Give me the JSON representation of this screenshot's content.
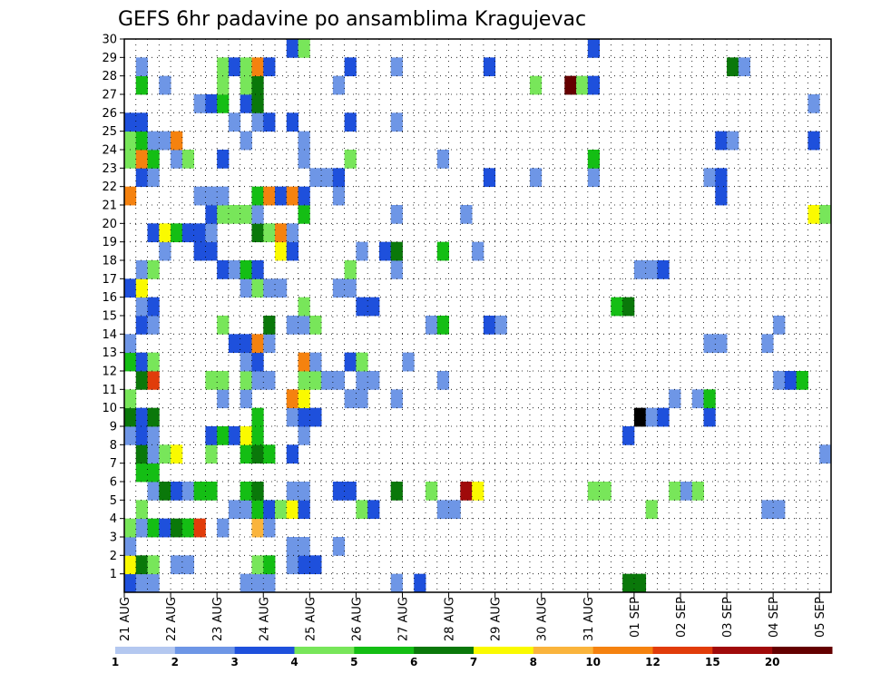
{
  "chart_data": {
    "type": "heatmap",
    "title": "GEFS 6hr padavine po ansamblima Kragujevac",
    "xlabel": "",
    "ylabel": "",
    "x_ticks": [
      "21 AUG",
      "22 AUG",
      "23 AUG",
      "24 AUG",
      "25 AUG",
      "26 AUG",
      "27 AUG",
      "28 AUG",
      "29 AUG",
      "30 AUG",
      "31 AUG",
      "01 SEP",
      "02 SEP",
      "03 SEP",
      "04 SEP",
      "05 SEP"
    ],
    "y_ticks": [
      "1",
      "2",
      "3",
      "4",
      "5",
      "6",
      "7",
      "8",
      "9",
      "10",
      "11",
      "12",
      "13",
      "14",
      "15",
      "16",
      "17",
      "18",
      "19",
      "20",
      "21",
      "22",
      "23",
      "24",
      "25",
      "26",
      "27",
      "28",
      "29",
      "30"
    ],
    "time_steps": 61,
    "members": 30,
    "grid": true,
    "legend": {
      "placement": "bottom",
      "levels": [
        "1",
        "2",
        "3",
        "4",
        "5",
        "6",
        "7",
        "8",
        "10",
        "12",
        "15",
        "20"
      ],
      "colors": [
        "#b4c8f0",
        "#6e96e6",
        "#1e50dc",
        "#78e65a",
        "#14be14",
        "#0a780a",
        "#fafa00",
        "#fab43c",
        "#f5820f",
        "#e13c0a",
        "#a00a0a",
        "#640000"
      ]
    },
    "cells": [
      [
        0,
        0,
        2
      ],
      [
        1,
        0,
        1
      ],
      [
        2,
        0,
        1
      ],
      [
        10,
        0,
        1
      ],
      [
        11,
        0,
        1
      ],
      [
        12,
        0,
        1
      ],
      [
        23,
        0,
        1
      ],
      [
        25,
        0,
        2
      ],
      [
        43,
        0,
        5
      ],
      [
        44,
        0,
        5
      ],
      [
        0,
        1,
        6
      ],
      [
        1,
        1,
        5
      ],
      [
        2,
        1,
        3
      ],
      [
        4,
        1,
        1
      ],
      [
        5,
        1,
        1
      ],
      [
        11,
        1,
        3
      ],
      [
        12,
        1,
        4
      ],
      [
        14,
        1,
        1
      ],
      [
        15,
        1,
        2
      ],
      [
        16,
        1,
        2
      ],
      [
        0,
        2,
        1
      ],
      [
        14,
        2,
        1
      ],
      [
        15,
        2,
        1
      ],
      [
        18,
        2,
        1
      ],
      [
        0,
        3,
        3
      ],
      [
        1,
        3,
        1
      ],
      [
        2,
        3,
        4
      ],
      [
        3,
        3,
        2
      ],
      [
        4,
        3,
        5
      ],
      [
        5,
        3,
        4
      ],
      [
        6,
        3,
        9
      ],
      [
        8,
        3,
        1
      ],
      [
        11,
        3,
        7
      ],
      [
        12,
        3,
        1
      ],
      [
        1,
        4,
        3
      ],
      [
        9,
        4,
        1
      ],
      [
        10,
        4,
        1
      ],
      [
        11,
        4,
        4
      ],
      [
        12,
        4,
        2
      ],
      [
        13,
        4,
        3
      ],
      [
        14,
        4,
        6
      ],
      [
        15,
        4,
        2
      ],
      [
        20,
        4,
        3
      ],
      [
        21,
        4,
        2
      ],
      [
        27,
        4,
        1
      ],
      [
        28,
        4,
        1
      ],
      [
        45,
        4,
        3
      ],
      [
        55,
        4,
        1
      ],
      [
        56,
        4,
        1
      ],
      [
        2,
        5,
        1
      ],
      [
        3,
        5,
        5
      ],
      [
        4,
        5,
        2
      ],
      [
        5,
        5,
        1
      ],
      [
        6,
        5,
        4
      ],
      [
        7,
        5,
        4
      ],
      [
        10,
        5,
        4
      ],
      [
        11,
        5,
        5
      ],
      [
        14,
        5,
        1
      ],
      [
        15,
        5,
        1
      ],
      [
        18,
        5,
        2
      ],
      [
        19,
        5,
        2
      ],
      [
        23,
        5,
        5
      ],
      [
        26,
        5,
        3
      ],
      [
        29,
        5,
        10
      ],
      [
        30,
        5,
        6
      ],
      [
        40,
        5,
        3
      ],
      [
        41,
        5,
        3
      ],
      [
        47,
        5,
        3
      ],
      [
        48,
        5,
        1
      ],
      [
        49,
        5,
        3
      ],
      [
        1,
        6,
        4
      ],
      [
        2,
        6,
        4
      ],
      [
        1,
        7,
        5
      ],
      [
        2,
        7,
        1
      ],
      [
        3,
        7,
        3
      ],
      [
        4,
        7,
        6
      ],
      [
        7,
        7,
        3
      ],
      [
        10,
        7,
        4
      ],
      [
        11,
        7,
        5
      ],
      [
        12,
        7,
        4
      ],
      [
        14,
        7,
        2
      ],
      [
        60,
        7,
        1
      ],
      [
        0,
        8,
        1
      ],
      [
        1,
        8,
        2
      ],
      [
        2,
        8,
        1
      ],
      [
        7,
        8,
        2
      ],
      [
        8,
        8,
        4
      ],
      [
        9,
        8,
        2
      ],
      [
        10,
        8,
        6
      ],
      [
        11,
        8,
        4
      ],
      [
        15,
        8,
        1
      ],
      [
        43,
        8,
        2
      ],
      [
        0,
        9,
        5
      ],
      [
        1,
        9,
        2
      ],
      [
        2,
        9,
        5
      ],
      [
        11,
        9,
        4
      ],
      [
        14,
        9,
        1
      ],
      [
        15,
        9,
        2
      ],
      [
        16,
        9,
        2
      ],
      [
        44,
        9,
        12
      ],
      [
        45,
        9,
        1
      ],
      [
        46,
        9,
        2
      ],
      [
        50,
        9,
        2
      ],
      [
        0,
        10,
        3
      ],
      [
        8,
        10,
        1
      ],
      [
        10,
        10,
        1
      ],
      [
        14,
        10,
        8
      ],
      [
        15,
        10,
        6
      ],
      [
        19,
        10,
        1
      ],
      [
        20,
        10,
        1
      ],
      [
        23,
        10,
        1
      ],
      [
        47,
        10,
        1
      ],
      [
        49,
        10,
        1
      ],
      [
        50,
        10,
        4
      ],
      [
        1,
        11,
        5
      ],
      [
        2,
        11,
        9
      ],
      [
        7,
        11,
        3
      ],
      [
        8,
        11,
        3
      ],
      [
        10,
        11,
        3
      ],
      [
        11,
        11,
        1
      ],
      [
        12,
        11,
        1
      ],
      [
        15,
        11,
        3
      ],
      [
        16,
        11,
        3
      ],
      [
        17,
        11,
        1
      ],
      [
        18,
        11,
        1
      ],
      [
        20,
        11,
        1
      ],
      [
        21,
        11,
        1
      ],
      [
        27,
        11,
        1
      ],
      [
        56,
        11,
        1
      ],
      [
        57,
        11,
        2
      ],
      [
        58,
        11,
        4
      ],
      [
        0,
        12,
        4
      ],
      [
        1,
        12,
        2
      ],
      [
        2,
        12,
        3
      ],
      [
        10,
        12,
        1
      ],
      [
        11,
        12,
        2
      ],
      [
        15,
        12,
        8
      ],
      [
        16,
        12,
        1
      ],
      [
        19,
        12,
        2
      ],
      [
        20,
        12,
        3
      ],
      [
        24,
        12,
        1
      ],
      [
        0,
        13,
        1
      ],
      [
        9,
        13,
        2
      ],
      [
        10,
        13,
        2
      ],
      [
        11,
        13,
        8
      ],
      [
        12,
        13,
        1
      ],
      [
        50,
        13,
        1
      ],
      [
        51,
        13,
        1
      ],
      [
        55,
        13,
        1
      ],
      [
        1,
        14,
        2
      ],
      [
        2,
        14,
        1
      ],
      [
        8,
        14,
        3
      ],
      [
        12,
        14,
        5
      ],
      [
        14,
        14,
        1
      ],
      [
        15,
        14,
        1
      ],
      [
        16,
        14,
        3
      ],
      [
        26,
        14,
        1
      ],
      [
        27,
        14,
        4
      ],
      [
        31,
        14,
        2
      ],
      [
        32,
        14,
        1
      ],
      [
        56,
        14,
        1
      ],
      [
        1,
        15,
        1
      ],
      [
        2,
        15,
        2
      ],
      [
        15,
        15,
        3
      ],
      [
        20,
        15,
        2
      ],
      [
        21,
        15,
        2
      ],
      [
        42,
        15,
        4
      ],
      [
        43,
        15,
        5
      ],
      [
        0,
        16,
        2
      ],
      [
        1,
        16,
        6
      ],
      [
        10,
        16,
        1
      ],
      [
        11,
        16,
        3
      ],
      [
        12,
        16,
        1
      ],
      [
        13,
        16,
        1
      ],
      [
        18,
        16,
        1
      ],
      [
        19,
        16,
        1
      ],
      [
        1,
        17,
        1
      ],
      [
        2,
        17,
        3
      ],
      [
        8,
        17,
        2
      ],
      [
        9,
        17,
        1
      ],
      [
        10,
        17,
        4
      ],
      [
        11,
        17,
        2
      ],
      [
        19,
        17,
        3
      ],
      [
        23,
        17,
        1
      ],
      [
        44,
        17,
        1
      ],
      [
        45,
        17,
        1
      ],
      [
        46,
        17,
        2
      ],
      [
        3,
        18,
        1
      ],
      [
        6,
        18,
        2
      ],
      [
        7,
        18,
        2
      ],
      [
        13,
        18,
        6
      ],
      [
        14,
        18,
        2
      ],
      [
        20,
        18,
        1
      ],
      [
        22,
        18,
        2
      ],
      [
        23,
        18,
        5
      ],
      [
        27,
        18,
        4
      ],
      [
        30,
        18,
        1
      ],
      [
        2,
        19,
        2
      ],
      [
        3,
        19,
        6
      ],
      [
        4,
        19,
        4
      ],
      [
        5,
        19,
        2
      ],
      [
        6,
        19,
        2
      ],
      [
        7,
        19,
        1
      ],
      [
        11,
        19,
        5
      ],
      [
        12,
        19,
        3
      ],
      [
        13,
        19,
        8
      ],
      [
        14,
        19,
        1
      ],
      [
        7,
        20,
        2
      ],
      [
        8,
        20,
        3
      ],
      [
        9,
        20,
        3
      ],
      [
        10,
        20,
        3
      ],
      [
        11,
        20,
        1
      ],
      [
        15,
        20,
        4
      ],
      [
        23,
        20,
        1
      ],
      [
        29,
        20,
        1
      ],
      [
        59,
        20,
        6
      ],
      [
        60,
        20,
        3
      ],
      [
        0,
        21,
        8
      ],
      [
        6,
        21,
        1
      ],
      [
        7,
        21,
        1
      ],
      [
        8,
        21,
        1
      ],
      [
        11,
        21,
        4
      ],
      [
        12,
        21,
        8
      ],
      [
        13,
        21,
        2
      ],
      [
        14,
        21,
        8
      ],
      [
        15,
        21,
        2
      ],
      [
        18,
        21,
        1
      ],
      [
        51,
        21,
        2
      ],
      [
        1,
        22,
        2
      ],
      [
        2,
        22,
        1
      ],
      [
        16,
        22,
        1
      ],
      [
        17,
        22,
        1
      ],
      [
        18,
        22,
        2
      ],
      [
        31,
        22,
        2
      ],
      [
        35,
        22,
        1
      ],
      [
        40,
        22,
        1
      ],
      [
        50,
        22,
        1
      ],
      [
        51,
        22,
        2
      ],
      [
        0,
        23,
        3
      ],
      [
        1,
        23,
        8
      ],
      [
        2,
        23,
        4
      ],
      [
        4,
        23,
        1
      ],
      [
        5,
        23,
        3
      ],
      [
        8,
        23,
        2
      ],
      [
        15,
        23,
        1
      ],
      [
        19,
        23,
        3
      ],
      [
        27,
        23,
        1
      ],
      [
        40,
        23,
        4
      ],
      [
        0,
        24,
        3
      ],
      [
        1,
        24,
        4
      ],
      [
        2,
        24,
        1
      ],
      [
        3,
        24,
        1
      ],
      [
        4,
        24,
        8
      ],
      [
        10,
        24,
        1
      ],
      [
        15,
        24,
        1
      ],
      [
        51,
        24,
        2
      ],
      [
        52,
        24,
        1
      ],
      [
        59,
        24,
        2
      ],
      [
        0,
        25,
        2
      ],
      [
        1,
        25,
        2
      ],
      [
        9,
        25,
        1
      ],
      [
        11,
        25,
        1
      ],
      [
        12,
        25,
        2
      ],
      [
        14,
        25,
        2
      ],
      [
        19,
        25,
        2
      ],
      [
        23,
        25,
        1
      ],
      [
        6,
        26,
        1
      ],
      [
        7,
        26,
        2
      ],
      [
        8,
        26,
        4
      ],
      [
        10,
        26,
        2
      ],
      [
        11,
        26,
        5
      ],
      [
        59,
        26,
        1
      ],
      [
        1,
        27,
        4
      ],
      [
        3,
        27,
        1
      ],
      [
        8,
        27,
        3
      ],
      [
        10,
        27,
        3
      ],
      [
        11,
        27,
        5
      ],
      [
        18,
        27,
        1
      ],
      [
        35,
        27,
        3
      ],
      [
        38,
        27,
        11
      ],
      [
        39,
        27,
        3
      ],
      [
        40,
        27,
        2
      ],
      [
        1,
        28,
        1
      ],
      [
        8,
        28,
        3
      ],
      [
        9,
        28,
        2
      ],
      [
        10,
        28,
        3
      ],
      [
        11,
        28,
        8
      ],
      [
        12,
        28,
        2
      ],
      [
        19,
        28,
        2
      ],
      [
        23,
        28,
        1
      ],
      [
        31,
        28,
        2
      ],
      [
        52,
        28,
        5
      ],
      [
        53,
        28,
        1
      ],
      [
        14,
        29,
        2
      ],
      [
        15,
        29,
        3
      ],
      [
        40,
        29,
        2
      ]
    ]
  }
}
